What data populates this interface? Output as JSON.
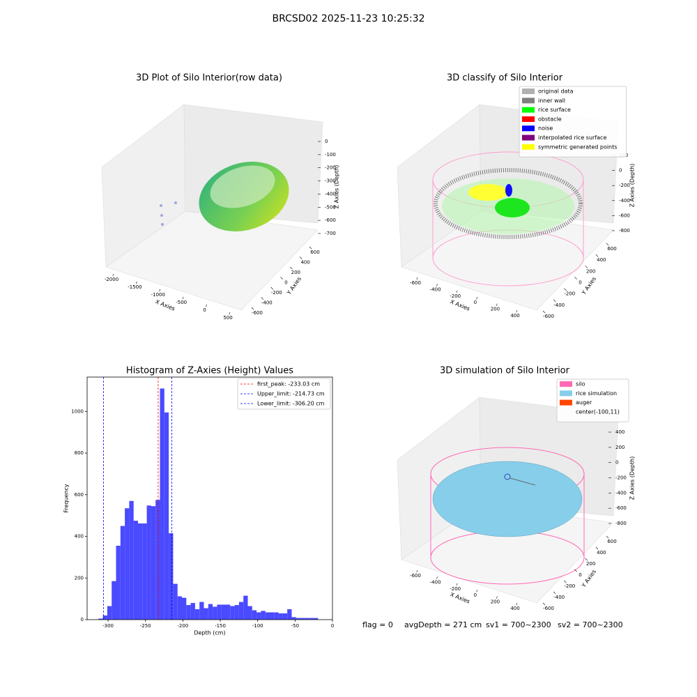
{
  "title": "BRCSD02 2025-11-23 10:25:32",
  "footer": [
    "flag = 0",
    "avgDepth = 271 cm",
    "sv1 = 700~2300",
    "sv2 = 700~2300"
  ],
  "chart_data": [
    {
      "type": "scatter3d",
      "title": "3D Plot of Silo Interior(row data)",
      "xlabel": "X Axies",
      "ylabel": "Y Axies",
      "zlabel": "Z Axies (Depth)",
      "xticks": [
        -2000,
        -1500,
        -1000,
        -500,
        0,
        500
      ],
      "yticks": [
        -600,
        -400,
        -200,
        0,
        200,
        400,
        600
      ],
      "zticks": [
        0,
        -100,
        -200,
        -300,
        -400,
        -500,
        -600,
        -700
      ]
    },
    {
      "type": "scatter3d",
      "title": "3D classify of Silo Interior",
      "xlabel": "X Axies",
      "ylabel": "Y Axies",
      "zlabel": "Z Axies (Depth)",
      "xticks": [
        -600,
        -400,
        -200,
        0,
        200,
        400
      ],
      "yticks": [
        -600,
        -400,
        -200,
        0,
        200,
        400,
        600
      ],
      "zticks": [
        200,
        0,
        -200,
        -400,
        -600,
        -800
      ],
      "legend": [
        {
          "name": "original data",
          "color": "#b0b0b0"
        },
        {
          "name": "inner wall",
          "color": "#808080"
        },
        {
          "name": "rice surface",
          "color": "#00ff00"
        },
        {
          "name": "obstacle",
          "color": "#ff0000"
        },
        {
          "name": "noise",
          "color": "#0000ff"
        },
        {
          "name": "interpolated rice surface",
          "color": "#800080"
        },
        {
          "name": "symmetric generated points",
          "color": "#ffff00"
        }
      ]
    },
    {
      "type": "histogram",
      "title": "Histogram of Z-Axies (Height) Values",
      "xlabel": "Depth (cm)",
      "ylabel": "Frequency",
      "color": "#4a4aff",
      "xlim": [
        -328,
        0
      ],
      "ylim": [
        0,
        1165
      ],
      "xticks": [
        -300,
        -250,
        -200,
        -150,
        -100,
        -50,
        0
      ],
      "yticks": [
        0,
        200,
        400,
        600,
        800,
        1000
      ],
      "bins": [
        -312.8,
        -306.93,
        -301.06,
        -295.19,
        -289.32,
        -283.45,
        -277.58,
        -271.71,
        -265.84,
        -259.97,
        -254.1,
        -248.23,
        -242.36,
        -236.49,
        -230.62,
        -224.75,
        -218.88,
        -213.01,
        -207.14,
        -201.27,
        -195.4,
        -189.53,
        -183.66,
        -177.79,
        -171.92,
        -166.05,
        -160.18,
        -154.31,
        -148.44,
        -142.57,
        -136.7,
        -130.83,
        -124.96,
        -119.09,
        -113.22,
        -107.35,
        -101.48,
        -95.61,
        -89.74,
        -83.87,
        -78,
        -72.13,
        -66.26,
        -60.39,
        -54.52,
        -48.65,
        -42.78,
        -36.91,
        -31.04,
        -25.17,
        -19.3
      ],
      "counts": [
        5,
        20,
        65,
        185,
        355,
        450,
        535,
        570,
        475,
        462,
        462,
        548,
        545,
        575,
        1110,
        995,
        415,
        172,
        112,
        105,
        70,
        80,
        50,
        85,
        55,
        75,
        62,
        72,
        72,
        72,
        65,
        70,
        85,
        115,
        65,
        45,
        35,
        42,
        35,
        35,
        35,
        30,
        30,
        50,
        12,
        8,
        8,
        8,
        8,
        8
      ],
      "vlines": [
        {
          "name": "first_peak: -233.03 cm",
          "value": -233.03,
          "color": "#ff0000"
        },
        {
          "name": "Upper_limit: -214.73 cm",
          "value": -214.73,
          "color": "#0000ff"
        },
        {
          "name": "Lower_limit: -306.20 cm",
          "value": -306.2,
          "color": "#0000ff"
        }
      ]
    },
    {
      "type": "scatter3d",
      "title": "3D simulation of Silo Interior",
      "xlabel": "X Axies",
      "ylabel": "Y Axies",
      "zlabel": "Z Axies (Depth)",
      "xticks": [
        -600,
        -400,
        -200,
        0,
        200,
        400
      ],
      "yticks": [
        -600,
        -400,
        -200,
        0,
        200,
        400,
        600
      ],
      "zticks": [
        400,
        200,
        0,
        -200,
        -400,
        -600,
        -800
      ],
      "legend": [
        {
          "name": "silo",
          "color": "#ff69b4"
        },
        {
          "name": "rice simulation",
          "color": "#87ceeb"
        },
        {
          "name": "auger",
          "color": "#ff4500"
        },
        {
          "name": "center(-100,11)",
          "color": null
        }
      ]
    }
  ]
}
